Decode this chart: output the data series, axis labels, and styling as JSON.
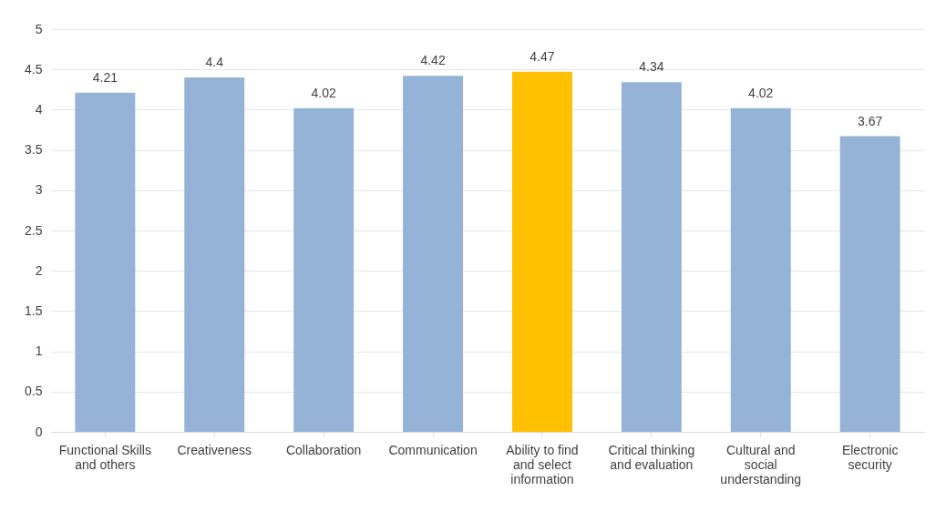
{
  "chart_data": {
    "type": "bar",
    "categories": [
      "Functional Skills and others",
      "Creativeness",
      "Collaboration",
      "Communication",
      "Ability to find and select information",
      "Critical thinking and evaluation",
      "Cultural and social understanding",
      "Electronic security"
    ],
    "values": [
      4.21,
      4.4,
      4.02,
      4.42,
      4.47,
      4.34,
      4.02,
      3.67
    ],
    "colors": [
      "#95b3d7",
      "#95b3d7",
      "#95b3d7",
      "#95b3d7",
      "#ffc000",
      "#95b3d7",
      "#95b3d7",
      "#95b3d7"
    ],
    "ylim": [
      0,
      5
    ],
    "yticks": [
      0,
      0.5,
      1,
      1.5,
      2,
      2.5,
      3,
      3.5,
      4,
      4.5,
      5
    ],
    "grid": "y",
    "data_labels": true
  }
}
